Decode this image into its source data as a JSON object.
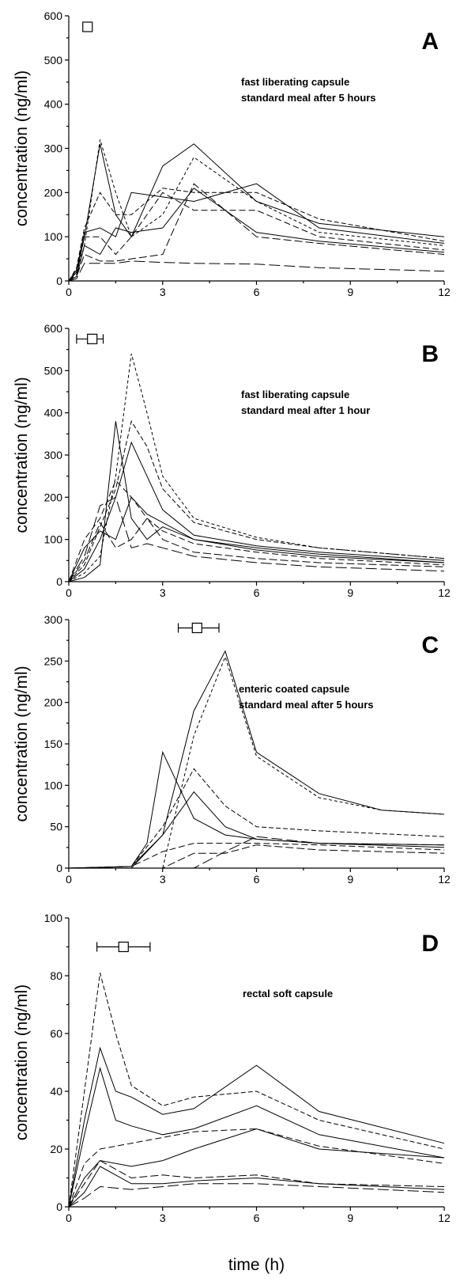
{
  "chart_data": [
    {
      "panel": "A",
      "type": "line",
      "ylabel": "concentration (ng/ml)",
      "ylim": [
        0,
        600
      ],
      "yticks": [
        0,
        100,
        200,
        300,
        400,
        500,
        600
      ],
      "xlim": [
        0,
        12
      ],
      "xticks": [
        0,
        3,
        6,
        9,
        12
      ],
      "annotation": [
        "fast liberating capsule",
        "standard meal after 5 hours"
      ],
      "marker": {
        "x": 0.6,
        "y": 575,
        "xerr": [
          0.5,
          0.7
        ]
      },
      "series": [
        {
          "x": [
            0,
            0.25,
            0.5,
            1,
            1.5,
            2,
            3,
            4,
            6,
            8,
            12
          ],
          "y": [
            0,
            20,
            80,
            320,
            200,
            100,
            150,
            280,
            180,
            110,
            80
          ],
          "dash": "4,3"
        },
        {
          "x": [
            0,
            0.25,
            0.5,
            1,
            1.5,
            2,
            3,
            4,
            6,
            8,
            12
          ],
          "y": [
            0,
            20,
            100,
            310,
            150,
            100,
            260,
            310,
            180,
            130,
            100
          ],
          "dash": "none"
        },
        {
          "x": [
            0,
            0.25,
            0.5,
            1,
            1.5,
            2,
            3,
            4,
            6,
            8,
            12
          ],
          "y": [
            0,
            30,
            120,
            200,
            150,
            150,
            210,
            200,
            200,
            140,
            90
          ],
          "dash": "6,3"
        },
        {
          "x": [
            0,
            0.25,
            0.5,
            1,
            1.5,
            2,
            3,
            4,
            6,
            8,
            12
          ],
          "y": [
            0,
            25,
            110,
            120,
            100,
            200,
            190,
            180,
            220,
            120,
            85
          ],
          "dash": "none"
        },
        {
          "x": [
            0,
            0.25,
            0.5,
            1,
            1.5,
            2,
            3,
            4,
            6,
            8,
            12
          ],
          "y": [
            0,
            15,
            100,
            100,
            60,
            100,
            200,
            160,
            160,
            100,
            70
          ],
          "dash": "8,4"
        },
        {
          "x": [
            0,
            0.25,
            0.5,
            1,
            1.5,
            2,
            3,
            4,
            6,
            8,
            12
          ],
          "y": [
            0,
            10,
            80,
            60,
            120,
            110,
            120,
            210,
            110,
            90,
            65
          ],
          "dash": "none"
        },
        {
          "x": [
            0,
            0.25,
            0.5,
            1,
            1.5,
            2,
            3,
            4,
            6,
            8,
            12
          ],
          "y": [
            0,
            10,
            60,
            45,
            45,
            50,
            60,
            220,
            100,
            85,
            60
          ],
          "dash": "10,4"
        },
        {
          "x": [
            0,
            0.25,
            0.5,
            1,
            1.5,
            2,
            3,
            4,
            6,
            8,
            12
          ],
          "y": [
            0,
            5,
            40,
            40,
            40,
            45,
            42,
            40,
            38,
            30,
            22
          ],
          "dash": "14,5"
        }
      ]
    },
    {
      "panel": "B",
      "type": "line",
      "ylabel": "concentration (ng/ml)",
      "ylim": [
        0,
        600
      ],
      "yticks": [
        0,
        100,
        200,
        300,
        400,
        500,
        600
      ],
      "xlim": [
        0,
        12
      ],
      "xticks": [
        0,
        3,
        6,
        9,
        12
      ],
      "annotation": [
        "fast liberating capsule",
        "standard meal after 1 hour"
      ],
      "marker": {
        "x": 0.75,
        "y": 575,
        "xerr": [
          0.25,
          1.1
        ]
      },
      "series": [
        {
          "x": [
            0,
            0.5,
            1,
            1.5,
            2,
            2.5,
            3,
            4,
            6,
            8,
            12
          ],
          "y": [
            0,
            20,
            60,
            250,
            540,
            400,
            250,
            150,
            105,
            80,
            55
          ],
          "dash": "4,3"
        },
        {
          "x": [
            0,
            0.5,
            1,
            1.5,
            2,
            2.5,
            3,
            4,
            6,
            8,
            12
          ],
          "y": [
            0,
            10,
            40,
            380,
            150,
            100,
            130,
            100,
            80,
            65,
            45
          ],
          "dash": "none"
        },
        {
          "x": [
            0,
            0.5,
            1,
            1.5,
            2,
            2.5,
            3,
            4,
            6,
            8,
            12
          ],
          "y": [
            0,
            40,
            130,
            220,
            380,
            320,
            220,
            140,
            100,
            80,
            55
          ],
          "dash": "6,3"
        },
        {
          "x": [
            0,
            0.5,
            1,
            1.5,
            2,
            2.5,
            3,
            4,
            6,
            8,
            12
          ],
          "y": [
            0,
            30,
            100,
            200,
            330,
            250,
            170,
            110,
            85,
            70,
            50
          ],
          "dash": "none"
        },
        {
          "x": [
            0,
            0.5,
            1,
            1.5,
            2,
            2.5,
            3,
            4,
            6,
            8,
            12
          ],
          "y": [
            0,
            100,
            150,
            240,
            200,
            150,
            120,
            90,
            70,
            55,
            40
          ],
          "dash": "8,4"
        },
        {
          "x": [
            0,
            0.5,
            1,
            1.5,
            2,
            2.5,
            3,
            4,
            6,
            8,
            12
          ],
          "y": [
            0,
            80,
            120,
            100,
            200,
            160,
            140,
            100,
            75,
            60,
            45
          ],
          "dash": "none"
        },
        {
          "x": [
            0,
            0.5,
            1,
            1.5,
            2,
            2.5,
            3,
            4,
            6,
            8,
            12
          ],
          "y": [
            0,
            50,
            140,
            80,
            100,
            150,
            100,
            70,
            55,
            45,
            35
          ],
          "dash": "10,4"
        },
        {
          "x": [
            0,
            0.5,
            1,
            1.5,
            2,
            2.5,
            3,
            4,
            6,
            8,
            12
          ],
          "y": [
            0,
            60,
            180,
            200,
            80,
            90,
            80,
            60,
            45,
            35,
            25
          ],
          "dash": "14,5"
        }
      ]
    },
    {
      "panel": "C",
      "type": "line",
      "ylabel": "concentration (ng/ml)",
      "ylim": [
        0,
        300
      ],
      "yticks": [
        0,
        50,
        100,
        150,
        200,
        250,
        300
      ],
      "xlim": [
        0,
        12
      ],
      "xticks": [
        0,
        3,
        6,
        9,
        12
      ],
      "annotation": [
        "enteric coated capsule",
        "standard meal after 5 hours"
      ],
      "marker": {
        "x": 4.1,
        "y": 290,
        "xerr": [
          3.5,
          4.8
        ]
      },
      "series": [
        {
          "x": [
            0,
            2,
            3,
            4,
            5,
            6,
            8,
            10,
            12
          ],
          "y": [
            0,
            0,
            40,
            190,
            262,
            140,
            90,
            70,
            65
          ],
          "dash": "none"
        },
        {
          "x": [
            0,
            3,
            3.5,
            4,
            5,
            6,
            8,
            10,
            12
          ],
          "y": [
            0,
            0,
            80,
            160,
            255,
            135,
            85,
            70,
            65
          ],
          "dash": "4,3"
        },
        {
          "x": [
            0,
            2,
            2.5,
            3,
            4,
            5,
            6,
            8,
            12
          ],
          "y": [
            0,
            2,
            30,
            140,
            60,
            40,
            35,
            30,
            25
          ],
          "dash": "none"
        },
        {
          "x": [
            0,
            2,
            3,
            4,
            5,
            6,
            8,
            12
          ],
          "y": [
            0,
            2,
            50,
            120,
            75,
            50,
            45,
            38
          ],
          "dash": "6,3"
        },
        {
          "x": [
            0,
            2,
            3,
            4,
            5,
            6,
            8,
            12
          ],
          "y": [
            0,
            2,
            40,
            92,
            50,
            35,
            30,
            28
          ],
          "dash": "none"
        },
        {
          "x": [
            0,
            2,
            3,
            4,
            6,
            8,
            12
          ],
          "y": [
            0,
            2,
            20,
            30,
            30,
            28,
            22
          ],
          "dash": "8,4"
        },
        {
          "x": [
            0,
            3,
            4,
            5,
            6,
            8,
            12
          ],
          "y": [
            0,
            0,
            18,
            18,
            28,
            22,
            18
          ],
          "dash": "10,4"
        },
        {
          "x": [
            0,
            4,
            5,
            6,
            8,
            12
          ],
          "y": [
            0,
            0,
            20,
            38,
            30,
            28
          ],
          "dash": "14,5"
        }
      ]
    },
    {
      "panel": "D",
      "type": "line",
      "ylabel": "concentration (ng/ml)",
      "ylim": [
        0,
        100
      ],
      "yticks": [
        0,
        20,
        40,
        60,
        80,
        100
      ],
      "xlim": [
        0,
        12
      ],
      "xticks": [
        0,
        3,
        6,
        9,
        12
      ],
      "xlabel": "time (h)",
      "annotation": [
        "rectal soft capsule"
      ],
      "marker": {
        "x": 1.75,
        "y": 90,
        "xerr": [
          0.9,
          2.6
        ]
      },
      "series": [
        {
          "x": [
            0,
            0.5,
            1,
            1.5,
            2,
            3,
            4,
            6,
            8,
            12
          ],
          "y": [
            0,
            40,
            81,
            60,
            42,
            35,
            38,
            40,
            30,
            20
          ],
          "dash": "6,3"
        },
        {
          "x": [
            0,
            0.5,
            1,
            1.5,
            2,
            3,
            4,
            6,
            8,
            12
          ],
          "y": [
            0,
            30,
            55,
            40,
            38,
            32,
            34,
            49,
            33,
            22
          ],
          "dash": "none"
        },
        {
          "x": [
            0,
            0.5,
            1,
            1.5,
            2,
            3,
            4,
            6,
            8,
            12
          ],
          "y": [
            0,
            25,
            48,
            30,
            28,
            25,
            27,
            35,
            25,
            17
          ],
          "dash": "none"
        },
        {
          "x": [
            0,
            0.5,
            1,
            2,
            3,
            4,
            6,
            8,
            12
          ],
          "y": [
            0,
            15,
            20,
            22,
            24,
            26,
            27,
            21,
            15
          ],
          "dash": "8,4"
        },
        {
          "x": [
            0,
            0.5,
            1,
            2,
            3,
            4,
            6,
            8,
            12
          ],
          "y": [
            0,
            10,
            16,
            14,
            16,
            20,
            27,
            20,
            17
          ],
          "dash": "none"
        },
        {
          "x": [
            0,
            0.5,
            1,
            2,
            3,
            4,
            6,
            8,
            12
          ],
          "y": [
            0,
            8,
            16,
            10,
            11,
            10,
            11,
            8,
            7
          ],
          "dash": "10,4"
        },
        {
          "x": [
            0,
            0.5,
            1,
            2,
            3,
            4,
            6,
            8,
            12
          ],
          "y": [
            0,
            5,
            14,
            8,
            8,
            9,
            10,
            8,
            6
          ],
          "dash": "none"
        },
        {
          "x": [
            0,
            0.5,
            1,
            2,
            3,
            4,
            6,
            8,
            12
          ],
          "y": [
            0,
            3,
            7,
            6,
            7,
            8,
            8,
            7,
            5
          ],
          "dash": "14,5"
        }
      ]
    }
  ]
}
